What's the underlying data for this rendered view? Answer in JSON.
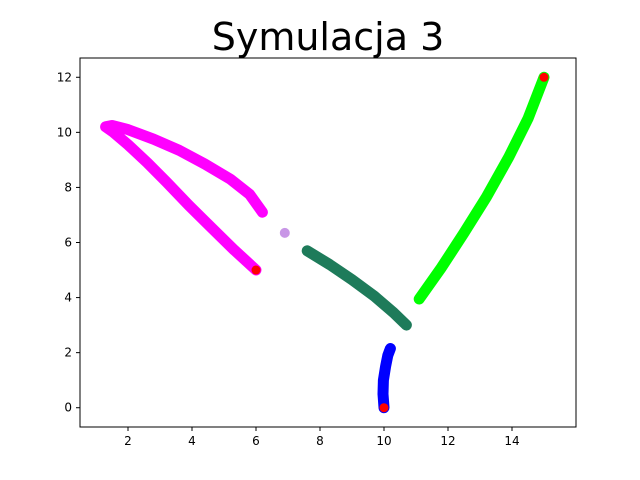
{
  "chart_data": {
    "type": "scatter",
    "title": "Symulacja 3",
    "xlabel": "",
    "ylabel": "",
    "xlim": [
      0.5,
      16.0
    ],
    "ylim": [
      -0.7,
      12.7
    ],
    "xticks": [
      2,
      4,
      6,
      8,
      10,
      12,
      14
    ],
    "yticks": [
      0,
      2,
      4,
      6,
      8,
      10,
      12
    ],
    "grid": false,
    "series": [
      {
        "color": "#ff00ff",
        "points": [
          [
            6.0,
            5.0
          ],
          [
            5.3,
            5.75
          ],
          [
            4.6,
            6.55
          ],
          [
            3.9,
            7.35
          ],
          [
            3.2,
            8.2
          ],
          [
            2.6,
            8.9
          ],
          [
            2.0,
            9.55
          ],
          [
            1.55,
            10.0
          ],
          [
            1.3,
            10.2
          ],
          [
            1.5,
            10.25
          ],
          [
            2.0,
            10.1
          ],
          [
            2.8,
            9.75
          ],
          [
            3.6,
            9.35
          ],
          [
            4.4,
            8.85
          ],
          [
            5.2,
            8.3
          ],
          [
            5.8,
            7.75
          ],
          [
            6.2,
            7.1
          ]
        ]
      },
      {
        "color": "#1e7b5a",
        "points": [
          [
            7.6,
            5.7
          ],
          [
            8.3,
            5.2
          ],
          [
            9.0,
            4.65
          ],
          [
            9.7,
            4.05
          ],
          [
            10.3,
            3.45
          ],
          [
            10.7,
            3.0
          ]
        ]
      },
      {
        "color": "#00ff00",
        "points": [
          [
            11.1,
            3.95
          ],
          [
            11.8,
            5.1
          ],
          [
            12.5,
            6.35
          ],
          [
            13.2,
            7.65
          ],
          [
            13.9,
            9.1
          ],
          [
            14.5,
            10.5
          ],
          [
            15.0,
            12.0
          ]
        ]
      },
      {
        "color": "#0000ff",
        "points": [
          [
            10.0,
            0.0
          ],
          [
            9.97,
            0.5
          ],
          [
            9.98,
            1.0
          ],
          [
            10.05,
            1.5
          ],
          [
            10.12,
            1.9
          ],
          [
            10.2,
            2.15
          ]
        ]
      },
      {
        "color": "#c896e6",
        "points": [
          [
            6.9,
            6.35
          ]
        ]
      }
    ],
    "markers": {
      "color": "#ff0000",
      "points": [
        [
          6.0,
          5.0
        ],
        [
          10.0,
          0.0
        ],
        [
          15.0,
          12.0
        ]
      ]
    }
  }
}
